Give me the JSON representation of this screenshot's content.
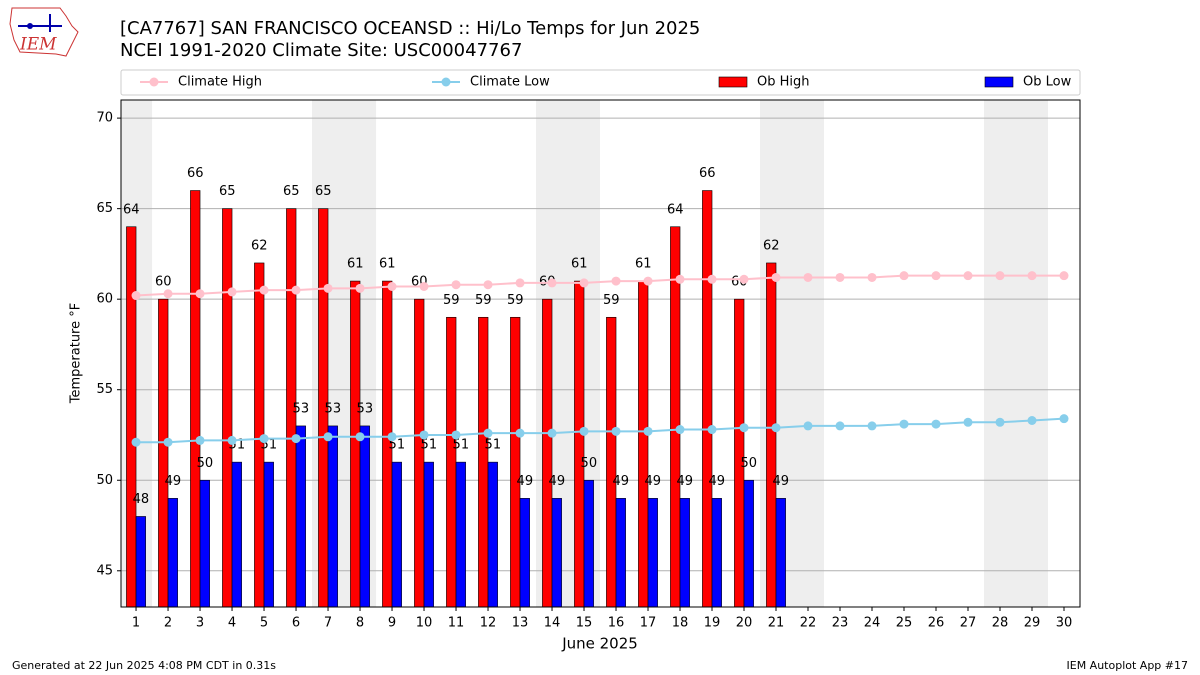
{
  "chart_data": {
    "type": "bar",
    "title": "[CA7767] SAN FRANCISCO OCEANSD :: Hi/Lo Temps for Jun 2025",
    "subtitle": "NCEI 1991-2020 Climate Site: USC00047767",
    "xlabel": "June 2025",
    "ylabel": "Temperature °F",
    "logo_text": "IEM",
    "footer_left": "Generated at 22 Jun 2025 4:08 PM CDT in 0.31s",
    "footer_right": "IEM Autoplot App #17",
    "x": [
      1,
      2,
      3,
      4,
      5,
      6,
      7,
      8,
      9,
      10,
      11,
      12,
      13,
      14,
      15,
      16,
      17,
      18,
      19,
      20,
      21,
      22,
      23,
      24,
      25,
      26,
      27,
      28,
      29,
      30
    ],
    "xlim": [
      0.53,
      30.5
    ],
    "xticks": [
      1,
      2,
      3,
      4,
      5,
      6,
      7,
      8,
      9,
      10,
      11,
      12,
      13,
      14,
      15,
      16,
      17,
      18,
      19,
      20,
      21,
      22,
      23,
      24,
      25,
      26,
      27,
      28,
      29,
      30
    ],
    "ylim": [
      43,
      71
    ],
    "yticks": [
      45,
      50,
      55,
      60,
      65,
      70
    ],
    "grid": true,
    "legend": "top",
    "shaded_days": [
      1,
      7,
      8,
      14,
      15,
      21,
      22,
      28,
      29
    ],
    "series": [
      {
        "name": "Climate High",
        "type": "line",
        "color": "#ffc0cb",
        "values": [
          60.2,
          60.3,
          60.3,
          60.4,
          60.5,
          60.5,
          60.6,
          60.6,
          60.7,
          60.7,
          60.8,
          60.8,
          60.9,
          60.9,
          60.9,
          61.0,
          61.0,
          61.1,
          61.1,
          61.1,
          61.2,
          61.2,
          61.2,
          61.2,
          61.3,
          61.3,
          61.3,
          61.3,
          61.3,
          61.3
        ]
      },
      {
        "name": "Climate Low",
        "type": "line",
        "color": "#87ceeb",
        "values": [
          52.1,
          52.1,
          52.2,
          52.2,
          52.3,
          52.3,
          52.4,
          52.4,
          52.4,
          52.5,
          52.5,
          52.6,
          52.6,
          52.6,
          52.7,
          52.7,
          52.7,
          52.8,
          52.8,
          52.9,
          52.9,
          53.0,
          53.0,
          53.0,
          53.1,
          53.1,
          53.2,
          53.2,
          53.3,
          53.4
        ]
      },
      {
        "name": "Ob High",
        "type": "bar",
        "color": "#ff0000",
        "values": [
          64,
          60,
          66,
          65,
          62,
          65,
          65,
          61,
          61,
          60,
          59,
          59,
          59,
          60,
          61,
          59,
          61,
          64,
          66,
          60,
          62,
          null,
          null,
          null,
          null,
          null,
          null,
          null,
          null,
          null
        ]
      },
      {
        "name": "Ob Low",
        "type": "bar",
        "color": "#0000ff",
        "values": [
          48,
          49,
          50,
          51,
          51,
          53,
          53,
          53,
          51,
          51,
          51,
          51,
          49,
          49,
          50,
          49,
          49,
          49,
          49,
          50,
          49,
          null,
          null,
          null,
          null,
          null,
          null,
          null,
          null,
          null
        ]
      }
    ]
  }
}
